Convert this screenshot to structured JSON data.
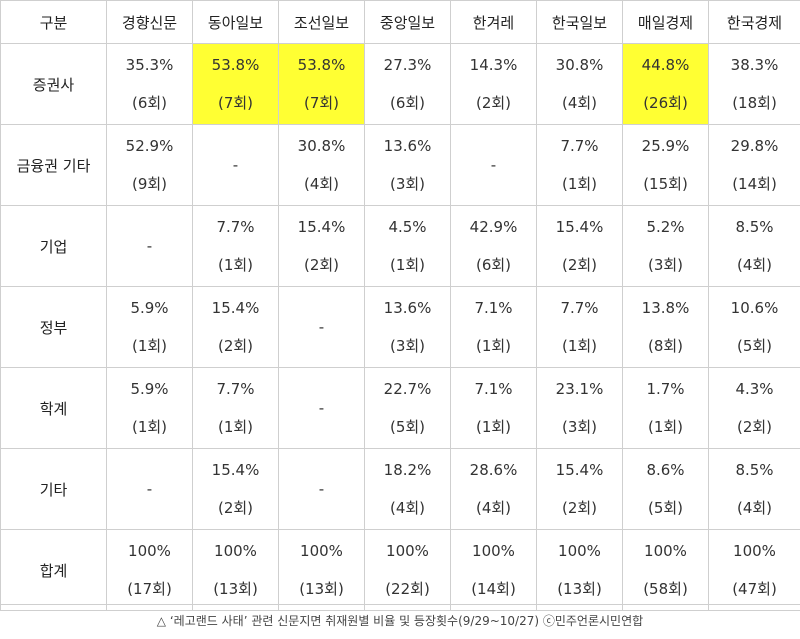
{
  "header": {
    "corner": "구분",
    "columns": [
      "경향신문",
      "동아일보",
      "조선일보",
      "중앙일보",
      "한겨레",
      "한국일보",
      "매일경제",
      "한국경제"
    ]
  },
  "highlight_color": "#ffff33",
  "rows": [
    {
      "label": "증권사",
      "cells": [
        {
          "pct": "35.3%",
          "count": "(6회)"
        },
        {
          "pct": "53.8%",
          "count": "(7회)",
          "highlight": true
        },
        {
          "pct": "53.8%",
          "count": "(7회)",
          "highlight": true
        },
        {
          "pct": "27.3%",
          "count": "(6회)"
        },
        {
          "pct": "14.3%",
          "count": "(2회)"
        },
        {
          "pct": "30.8%",
          "count": "(4회)"
        },
        {
          "pct": "44.8%",
          "count": "(26회)",
          "highlight": true
        },
        {
          "pct": "38.3%",
          "count": "(18회)"
        }
      ]
    },
    {
      "label": "금융권 기타",
      "cells": [
        {
          "pct": "52.9%",
          "count": "(9회)"
        },
        {
          "dash": "-"
        },
        {
          "pct": "30.8%",
          "count": "(4회)"
        },
        {
          "pct": "13.6%",
          "count": "(3회)"
        },
        {
          "dash": "-"
        },
        {
          "pct": "7.7%",
          "count": "(1회)"
        },
        {
          "pct": "25.9%",
          "count": "(15회)"
        },
        {
          "pct": "29.8%",
          "count": "(14회)"
        }
      ]
    },
    {
      "label": "기업",
      "cells": [
        {
          "dash": "-"
        },
        {
          "pct": "7.7%",
          "count": "(1회)"
        },
        {
          "pct": "15.4%",
          "count": "(2회)"
        },
        {
          "pct": "4.5%",
          "count": "(1회)"
        },
        {
          "pct": "42.9%",
          "count": "(6회)"
        },
        {
          "pct": "15.4%",
          "count": "(2회)"
        },
        {
          "pct": "5.2%",
          "count": "(3회)"
        },
        {
          "pct": "8.5%",
          "count": "(4회)"
        }
      ]
    },
    {
      "label": "정부",
      "cells": [
        {
          "pct": "5.9%",
          "count": "(1회)"
        },
        {
          "pct": "15.4%",
          "count": "(2회)"
        },
        {
          "dash": "-"
        },
        {
          "pct": "13.6%",
          "count": "(3회)"
        },
        {
          "pct": "7.1%",
          "count": "(1회)"
        },
        {
          "pct": "7.7%",
          "count": "(1회)"
        },
        {
          "pct": "13.8%",
          "count": "(8회)"
        },
        {
          "pct": "10.6%",
          "count": "(5회)"
        }
      ]
    },
    {
      "label": "학계",
      "cells": [
        {
          "pct": "5.9%",
          "count": "(1회)"
        },
        {
          "pct": "7.7%",
          "count": "(1회)"
        },
        {
          "dash": "-"
        },
        {
          "pct": "22.7%",
          "count": "(5회)"
        },
        {
          "pct": "7.1%",
          "count": "(1회)"
        },
        {
          "pct": "23.1%",
          "count": "(3회)"
        },
        {
          "pct": "1.7%",
          "count": "(1회)"
        },
        {
          "pct": "4.3%",
          "count": "(2회)"
        }
      ]
    },
    {
      "label": "기타",
      "cells": [
        {
          "dash": "-"
        },
        {
          "pct": "15.4%",
          "count": "(2회)"
        },
        {
          "dash": "-"
        },
        {
          "pct": "18.2%",
          "count": "(4회)"
        },
        {
          "pct": "28.6%",
          "count": "(4회)"
        },
        {
          "pct": "15.4%",
          "count": "(2회)"
        },
        {
          "pct": "8.6%",
          "count": "(5회)"
        },
        {
          "pct": "8.5%",
          "count": "(4회)"
        }
      ]
    },
    {
      "label": "합계",
      "cells": [
        {
          "pct": "100%",
          "count": "(17회)"
        },
        {
          "pct": "100%",
          "count": "(13회)"
        },
        {
          "pct": "100%",
          "count": "(13회)"
        },
        {
          "pct": "100%",
          "count": "(22회)"
        },
        {
          "pct": "100%",
          "count": "(14회)"
        },
        {
          "pct": "100%",
          "count": "(13회)"
        },
        {
          "pct": "100%",
          "count": "(58회)"
        },
        {
          "pct": "100%",
          "count": "(47회)"
        }
      ]
    }
  ],
  "caption": "△ ‘레고랜드 사태’ 관련 신문지면 취재원별 비율 및 등장횟수(9/29~10/27) ⓒ민주언론시민연합"
}
